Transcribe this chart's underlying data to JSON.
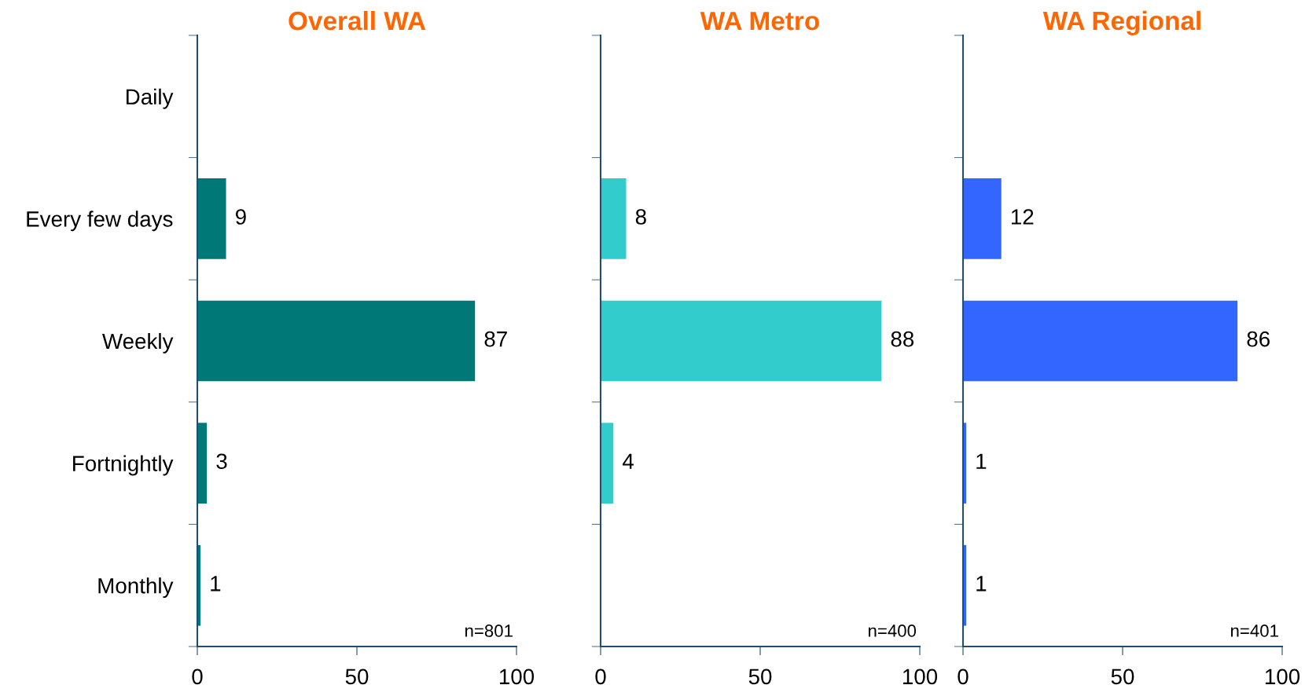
{
  "chart_data": [
    {
      "type": "bar",
      "orientation": "horizontal",
      "title": "Overall WA",
      "categories": [
        "Daily",
        "Every few days",
        "Weekly",
        "Fortnightly",
        "Monthly"
      ],
      "series": [
        {
          "color": "#007877",
          "values": [
            null,
            9,
            87,
            3,
            1
          ]
        }
      ],
      "xlim": [
        0,
        100
      ],
      "xticks": [
        0,
        50,
        100
      ],
      "data_labels": true,
      "annotations": [
        "n=801"
      ]
    },
    {
      "type": "bar",
      "orientation": "horizontal",
      "title": "WA Metro",
      "categories": [
        null,
        null,
        null,
        null,
        null
      ],
      "series": [
        {
          "color": "#33cccc",
          "values": [
            null,
            8,
            88,
            4,
            null
          ]
        }
      ],
      "xlim": [
        0,
        100
      ],
      "xticks": [
        0,
        50,
        100
      ],
      "data_labels": true,
      "tick_labels": "x",
      "annotations": [
        "n=400"
      ]
    },
    {
      "type": "bar",
      "orientation": "horizontal",
      "title": "WA Regional",
      "categories": [
        null,
        null,
        null,
        null,
        null
      ],
      "series": [
        {
          "color": "#3366ff",
          "values": [
            null,
            12,
            86,
            1,
            1
          ]
        }
      ],
      "xlim": [
        0,
        100
      ],
      "xticks": [
        0,
        50,
        100
      ],
      "data_labels": true,
      "tick_labels": "x",
      "annotations": [
        "n=401"
      ]
    }
  ]
}
